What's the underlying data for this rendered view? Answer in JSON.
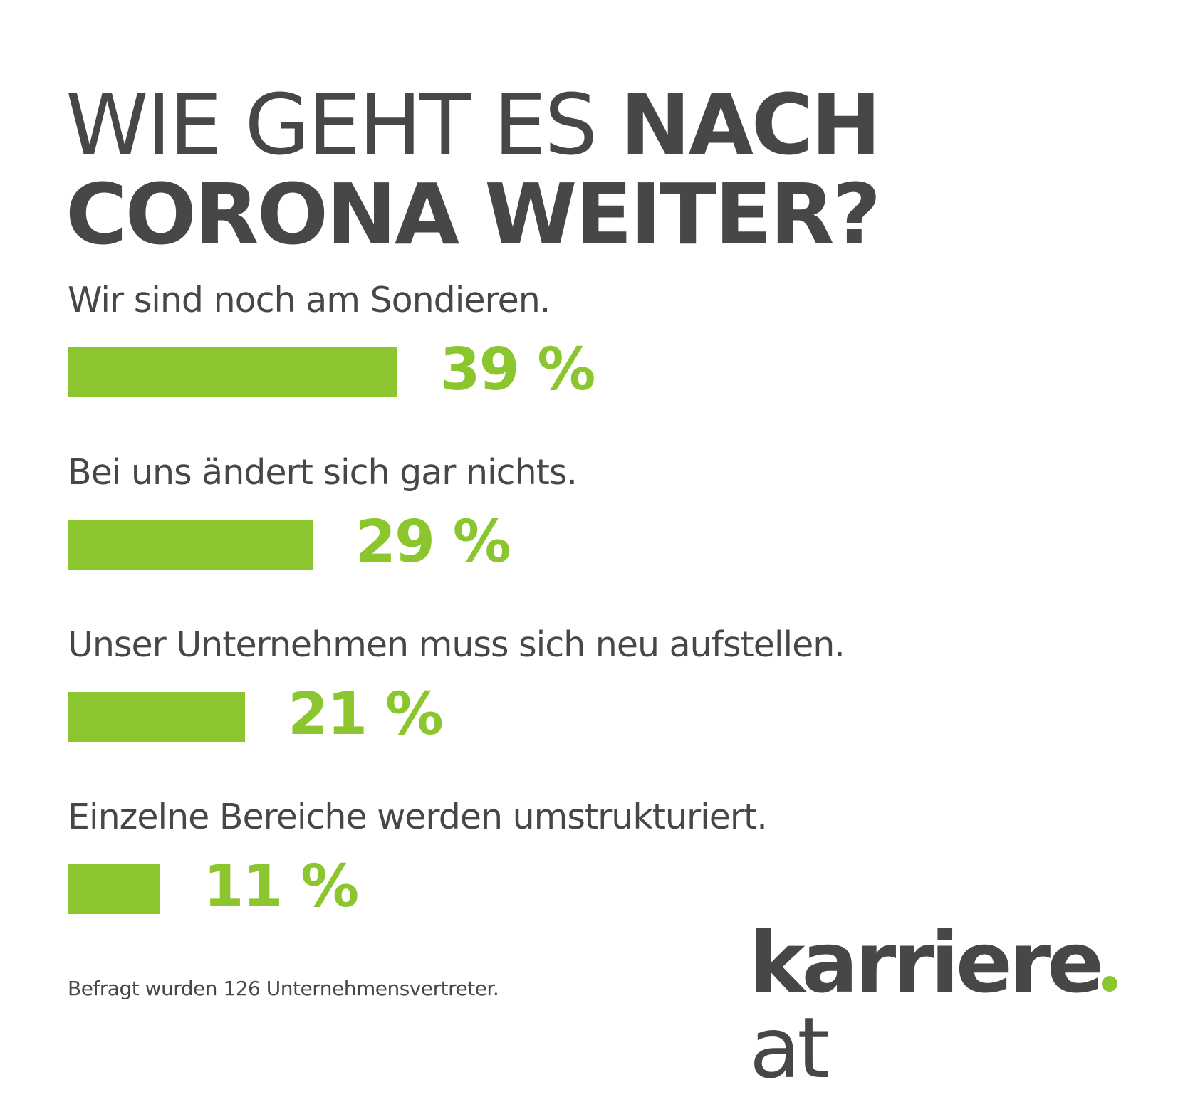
{
  "title": {
    "light": "WIE GEHT ES",
    "bold_line1": "NACH",
    "bold_line2": "CORONA WEITER?"
  },
  "chart_data": {
    "type": "bar",
    "orientation": "horizontal",
    "categories": [
      "Wir sind noch am Sondieren.",
      "Bei uns ändert sich gar nichts.",
      "Unser Unternehmen muss sich neu aufstellen.",
      "Einzelne Bereiche werden umstrukturiert."
    ],
    "values": [
      39,
      29,
      21,
      11
    ],
    "value_labels": [
      "39 %",
      "29 %",
      "21 %",
      "11 %"
    ],
    "unit": "%",
    "bar_color": "#8cc62f",
    "grid": false
  },
  "footer": {
    "note": "Befragt wurden 126 Unternehmensvertreter."
  },
  "logo": {
    "brand": "karriere",
    "tld": "at",
    "dot_color": "#8cc62f"
  }
}
